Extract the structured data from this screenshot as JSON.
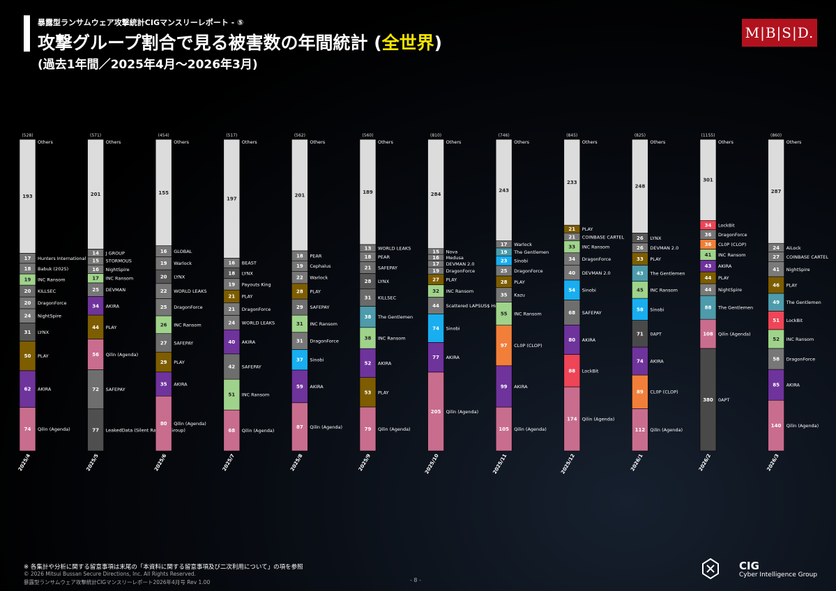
{
  "header": {
    "subtitle": "暴露型ランサムウェア攻撃統計CIGマンスリーレポート - ⑤",
    "title_main": "攻撃グループ割合で見る被害数の年間統計 (",
    "title_highlight": "全世界",
    "title_close": ")",
    "period": "(過去1年間／2025年4月～2026年3月)",
    "logo": "M|B|S|D."
  },
  "colors": {
    "Others": "#dcdcdc",
    "Qilin (Agenda)": "#c96d8e",
    "AKIRA": "#6f339c",
    "PLAY": "#7d5d00",
    "LYNX": "#565656",
    "NightSpire": "#7a7a7a",
    "DragonForce": "#777777",
    "KILLSEC": "#6b6b6b",
    "INC Ransom": "#9fd38b",
    "SAFEPAY": "#6e6e6e",
    "Sinobi": "#18aef0",
    "The Gentlemen": "#4d9bab",
    "CL0P (CLOP)": "#f17f3a",
    "LockBit": "#ee4557",
    "0APT": "#494949",
    "LeakedData (Silent Ransom Group)": "#4f4f4f",
    "default": "#777777"
  },
  "chart_data": {
    "type": "stacked-bar",
    "title": "攻撃グループ割合で見る被害数の年間統計 (全世界)",
    "months": [
      {
        "label": "2025/4",
        "total": "(528)",
        "segments": [
          {
            "name": "Qilin (Agenda)",
            "value": 74
          },
          {
            "name": "AKIRA",
            "value": 62
          },
          {
            "name": "PLAY",
            "value": 50
          },
          {
            "name": "LYNX",
            "value": 31
          },
          {
            "name": "NightSpire",
            "value": 24
          },
          {
            "name": "DragonForce",
            "value": 20
          },
          {
            "name": "KILLSEC",
            "value": 20
          },
          {
            "name": "INC Ransom",
            "value": 19
          },
          {
            "name": "Babuk (2025)",
            "value": 18
          },
          {
            "name": "Hunters International",
            "value": 17
          },
          {
            "name": "Others",
            "value": 193
          }
        ]
      },
      {
        "label": "2025/5",
        "total": "(571)",
        "segments": [
          {
            "name": "LeakedData (Silent Ransom Group)",
            "value": 77
          },
          {
            "name": "SAFEPAY",
            "value": 72
          },
          {
            "name": "Qilin (Agenda)",
            "value": 56
          },
          {
            "name": "PLAY",
            "value": 44
          },
          {
            "name": "AKIRA",
            "value": 34
          },
          {
            "name": "DEVMAN",
            "value": 25
          },
          {
            "name": "INC Ransom",
            "value": 17
          },
          {
            "name": "NightSpire",
            "value": 16
          },
          {
            "name": "STORMOUS",
            "value": 15
          },
          {
            "name": "J GROUP",
            "value": 14
          },
          {
            "name": "Others",
            "value": 201
          }
        ]
      },
      {
        "label": "2025/6",
        "total": "(454)",
        "segments": [
          {
            "name": "Qilin (Agenda)",
            "value": 80
          },
          {
            "name": "AKIRA",
            "value": 35
          },
          {
            "name": "PLAY",
            "value": 29
          },
          {
            "name": "SAFEPAY",
            "value": 27
          },
          {
            "name": "INC Ransom",
            "value": 26
          },
          {
            "name": "DragonForce",
            "value": 25
          },
          {
            "name": "WORLD LEAKS",
            "value": 22
          },
          {
            "name": "LYNX",
            "value": 20
          },
          {
            "name": "Warlock",
            "value": 19
          },
          {
            "name": "GLOBAL",
            "value": 16
          },
          {
            "name": "Others",
            "value": 155
          }
        ]
      },
      {
        "label": "2025/7",
        "total": "(517)",
        "segments": [
          {
            "name": "Qilin (Agenda)",
            "value": 68
          },
          {
            "name": "INC Ransom",
            "value": 51
          },
          {
            "name": "SAFEPAY",
            "value": 42
          },
          {
            "name": "AKIRA",
            "value": 40
          },
          {
            "name": "WORLD LEAKS",
            "value": 24
          },
          {
            "name": "DragonForce",
            "value": 21
          },
          {
            "name": "PLAY",
            "value": 21
          },
          {
            "name": "Payouts King",
            "value": 19
          },
          {
            "name": "LYNX",
            "value": 18
          },
          {
            "name": "BEAST",
            "value": 16
          },
          {
            "name": "Others",
            "value": 197
          }
        ]
      },
      {
        "label": "2025/8",
        "total": "(562)",
        "segments": [
          {
            "name": "Qilin (Agenda)",
            "value": 87
          },
          {
            "name": "AKIRA",
            "value": 59
          },
          {
            "name": "Sinobi",
            "value": 37
          },
          {
            "name": "DragonForce",
            "value": 31
          },
          {
            "name": "INC Ransom",
            "value": 31
          },
          {
            "name": "SAFEPAY",
            "value": 29
          },
          {
            "name": "PLAY",
            "value": 28
          },
          {
            "name": "Warlock",
            "value": 22
          },
          {
            "name": "Cephalus",
            "value": 19
          },
          {
            "name": "PEAR",
            "value": 18
          },
          {
            "name": "Others",
            "value": 201
          }
        ]
      },
      {
        "label": "2025/9",
        "total": "(560)",
        "segments": [
          {
            "name": "Qilin (Agenda)",
            "value": 79
          },
          {
            "name": "PLAY",
            "value": 53
          },
          {
            "name": "AKIRA",
            "value": 52
          },
          {
            "name": "INC Ransom",
            "value": 38
          },
          {
            "name": "The Gentlemen",
            "value": 38
          },
          {
            "name": "KILLSEC",
            "value": 31
          },
          {
            "name": "LYNX",
            "value": 28
          },
          {
            "name": "SAFEPAY",
            "value": 21
          },
          {
            "name": "PEAR",
            "value": 18
          },
          {
            "name": "WORLD LEAKS",
            "value": 13
          },
          {
            "name": "Others",
            "value": 189
          }
        ]
      },
      {
        "label": "2025/10",
        "total": "(810)",
        "segments": [
          {
            "name": "Qilin (Agenda)",
            "value": 205
          },
          {
            "name": "AKIRA",
            "value": 77
          },
          {
            "name": "Sinobi",
            "value": 74
          },
          {
            "name": "Scattered LAPSUS$ Hunters",
            "value": 44
          },
          {
            "name": "INC Ransom",
            "value": 32
          },
          {
            "name": "PLAY",
            "value": 27
          },
          {
            "name": "DragonForce",
            "value": 19
          },
          {
            "name": "DEVMAN 2.0",
            "value": 17
          },
          {
            "name": "Medusa",
            "value": 16
          },
          {
            "name": "Nova",
            "value": 15
          },
          {
            "name": "Others",
            "value": 284
          }
        ]
      },
      {
        "label": "2025/11",
        "total": "(746)",
        "segments": [
          {
            "name": "Qilin (Agenda)",
            "value": 105
          },
          {
            "name": "AKIRA",
            "value": 99
          },
          {
            "name": "CL0P (CLOP)",
            "value": 97
          },
          {
            "name": "INC Ransom",
            "value": 55
          },
          {
            "name": "Kazu",
            "value": 35
          },
          {
            "name": "PLAY",
            "value": 28
          },
          {
            "name": "DragonForce",
            "value": 25
          },
          {
            "name": "Sinobi",
            "value": 23
          },
          {
            "name": "The Gentlemen",
            "value": 19
          },
          {
            "name": "Warlock",
            "value": 17
          },
          {
            "name": "Others",
            "value": 243
          }
        ]
      },
      {
        "label": "2025/12",
        "total": "(845)",
        "segments": [
          {
            "name": "Qilin (Agenda)",
            "value": 174
          },
          {
            "name": "LockBit",
            "value": 88
          },
          {
            "name": "AKIRA",
            "value": 80
          },
          {
            "name": "SAFEPAY",
            "value": 68
          },
          {
            "name": "Sinobi",
            "value": 54
          },
          {
            "name": "DEVMAN 2.0",
            "value": 40
          },
          {
            "name": "DragonForce",
            "value": 34
          },
          {
            "name": "INC Ransom",
            "value": 33
          },
          {
            "name": "COINBASE CARTEL",
            "value": 21
          },
          {
            "name": "PLAY",
            "value": 21
          },
          {
            "name": "Others",
            "value": 233
          }
        ]
      },
      {
        "label": "2026/1",
        "total": "(825)",
        "segments": [
          {
            "name": "Qilin (Agenda)",
            "value": 112
          },
          {
            "name": "CL0P (CLOP)",
            "value": 89
          },
          {
            "name": "AKIRA",
            "value": 74
          },
          {
            "name": "0APT",
            "value": 71
          },
          {
            "name": "Sinobi",
            "value": 58
          },
          {
            "name": "INC Ransom",
            "value": 45
          },
          {
            "name": "The Gentlemen",
            "value": 43
          },
          {
            "name": "PLAY",
            "value": 33
          },
          {
            "name": "DEVMAN 2.0",
            "value": 26
          },
          {
            "name": "LYNX",
            "value": 26
          },
          {
            "name": "Others",
            "value": 248
          }
        ]
      },
      {
        "label": "2026/2",
        "total": "(1155)",
        "segments": [
          {
            "name": "0APT",
            "value": 380
          },
          {
            "name": "Qilin (Agenda)",
            "value": 108
          },
          {
            "name": "The Gentlemen",
            "value": 88
          },
          {
            "name": "NightSpire",
            "value": 44
          },
          {
            "name": "PLAY",
            "value": 44
          },
          {
            "name": "AKIRA",
            "value": 43
          },
          {
            "name": "INC Ransom",
            "value": 41
          },
          {
            "name": "CL0P (CLOP)",
            "value": 36
          },
          {
            "name": "DragonForce",
            "value": 36
          },
          {
            "name": "LockBit",
            "value": 34
          },
          {
            "name": "Others",
            "value": 301
          }
        ]
      },
      {
        "label": "2026/3",
        "total": "(860)",
        "segments": [
          {
            "name": "Qilin (Agenda)",
            "value": 140
          },
          {
            "name": "AKIRA",
            "value": 85
          },
          {
            "name": "DragonForce",
            "value": 58
          },
          {
            "name": "INC Ransom",
            "value": 52
          },
          {
            "name": "LockBit",
            "value": 51
          },
          {
            "name": "The Gentlemen",
            "value": 49
          },
          {
            "name": "PLAY",
            "value": 46
          },
          {
            "name": "NightSpire",
            "value": 41
          },
          {
            "name": "COINBASE CARTEL",
            "value": 27
          },
          {
            "name": "AiLock",
            "value": 24
          },
          {
            "name": "Others",
            "value": 287
          }
        ]
      }
    ]
  },
  "footer": {
    "note": "※ 各集計や分析に関する留意事項は末尾の「本資料に関する留意事項及び二次利用について」の項を参照",
    "copyright": "© 2026 Mitsui Bussan Secure Directions, Inc.  All Rights Reserved.",
    "report": "暴露型ランサムウェア攻撃統計CIGマンスリーレポート2026年4月号 Rev 1.00",
    "page": "- 8 -",
    "cig_name": "CIG",
    "cig_sub": "Cyber Intelligence Group"
  }
}
